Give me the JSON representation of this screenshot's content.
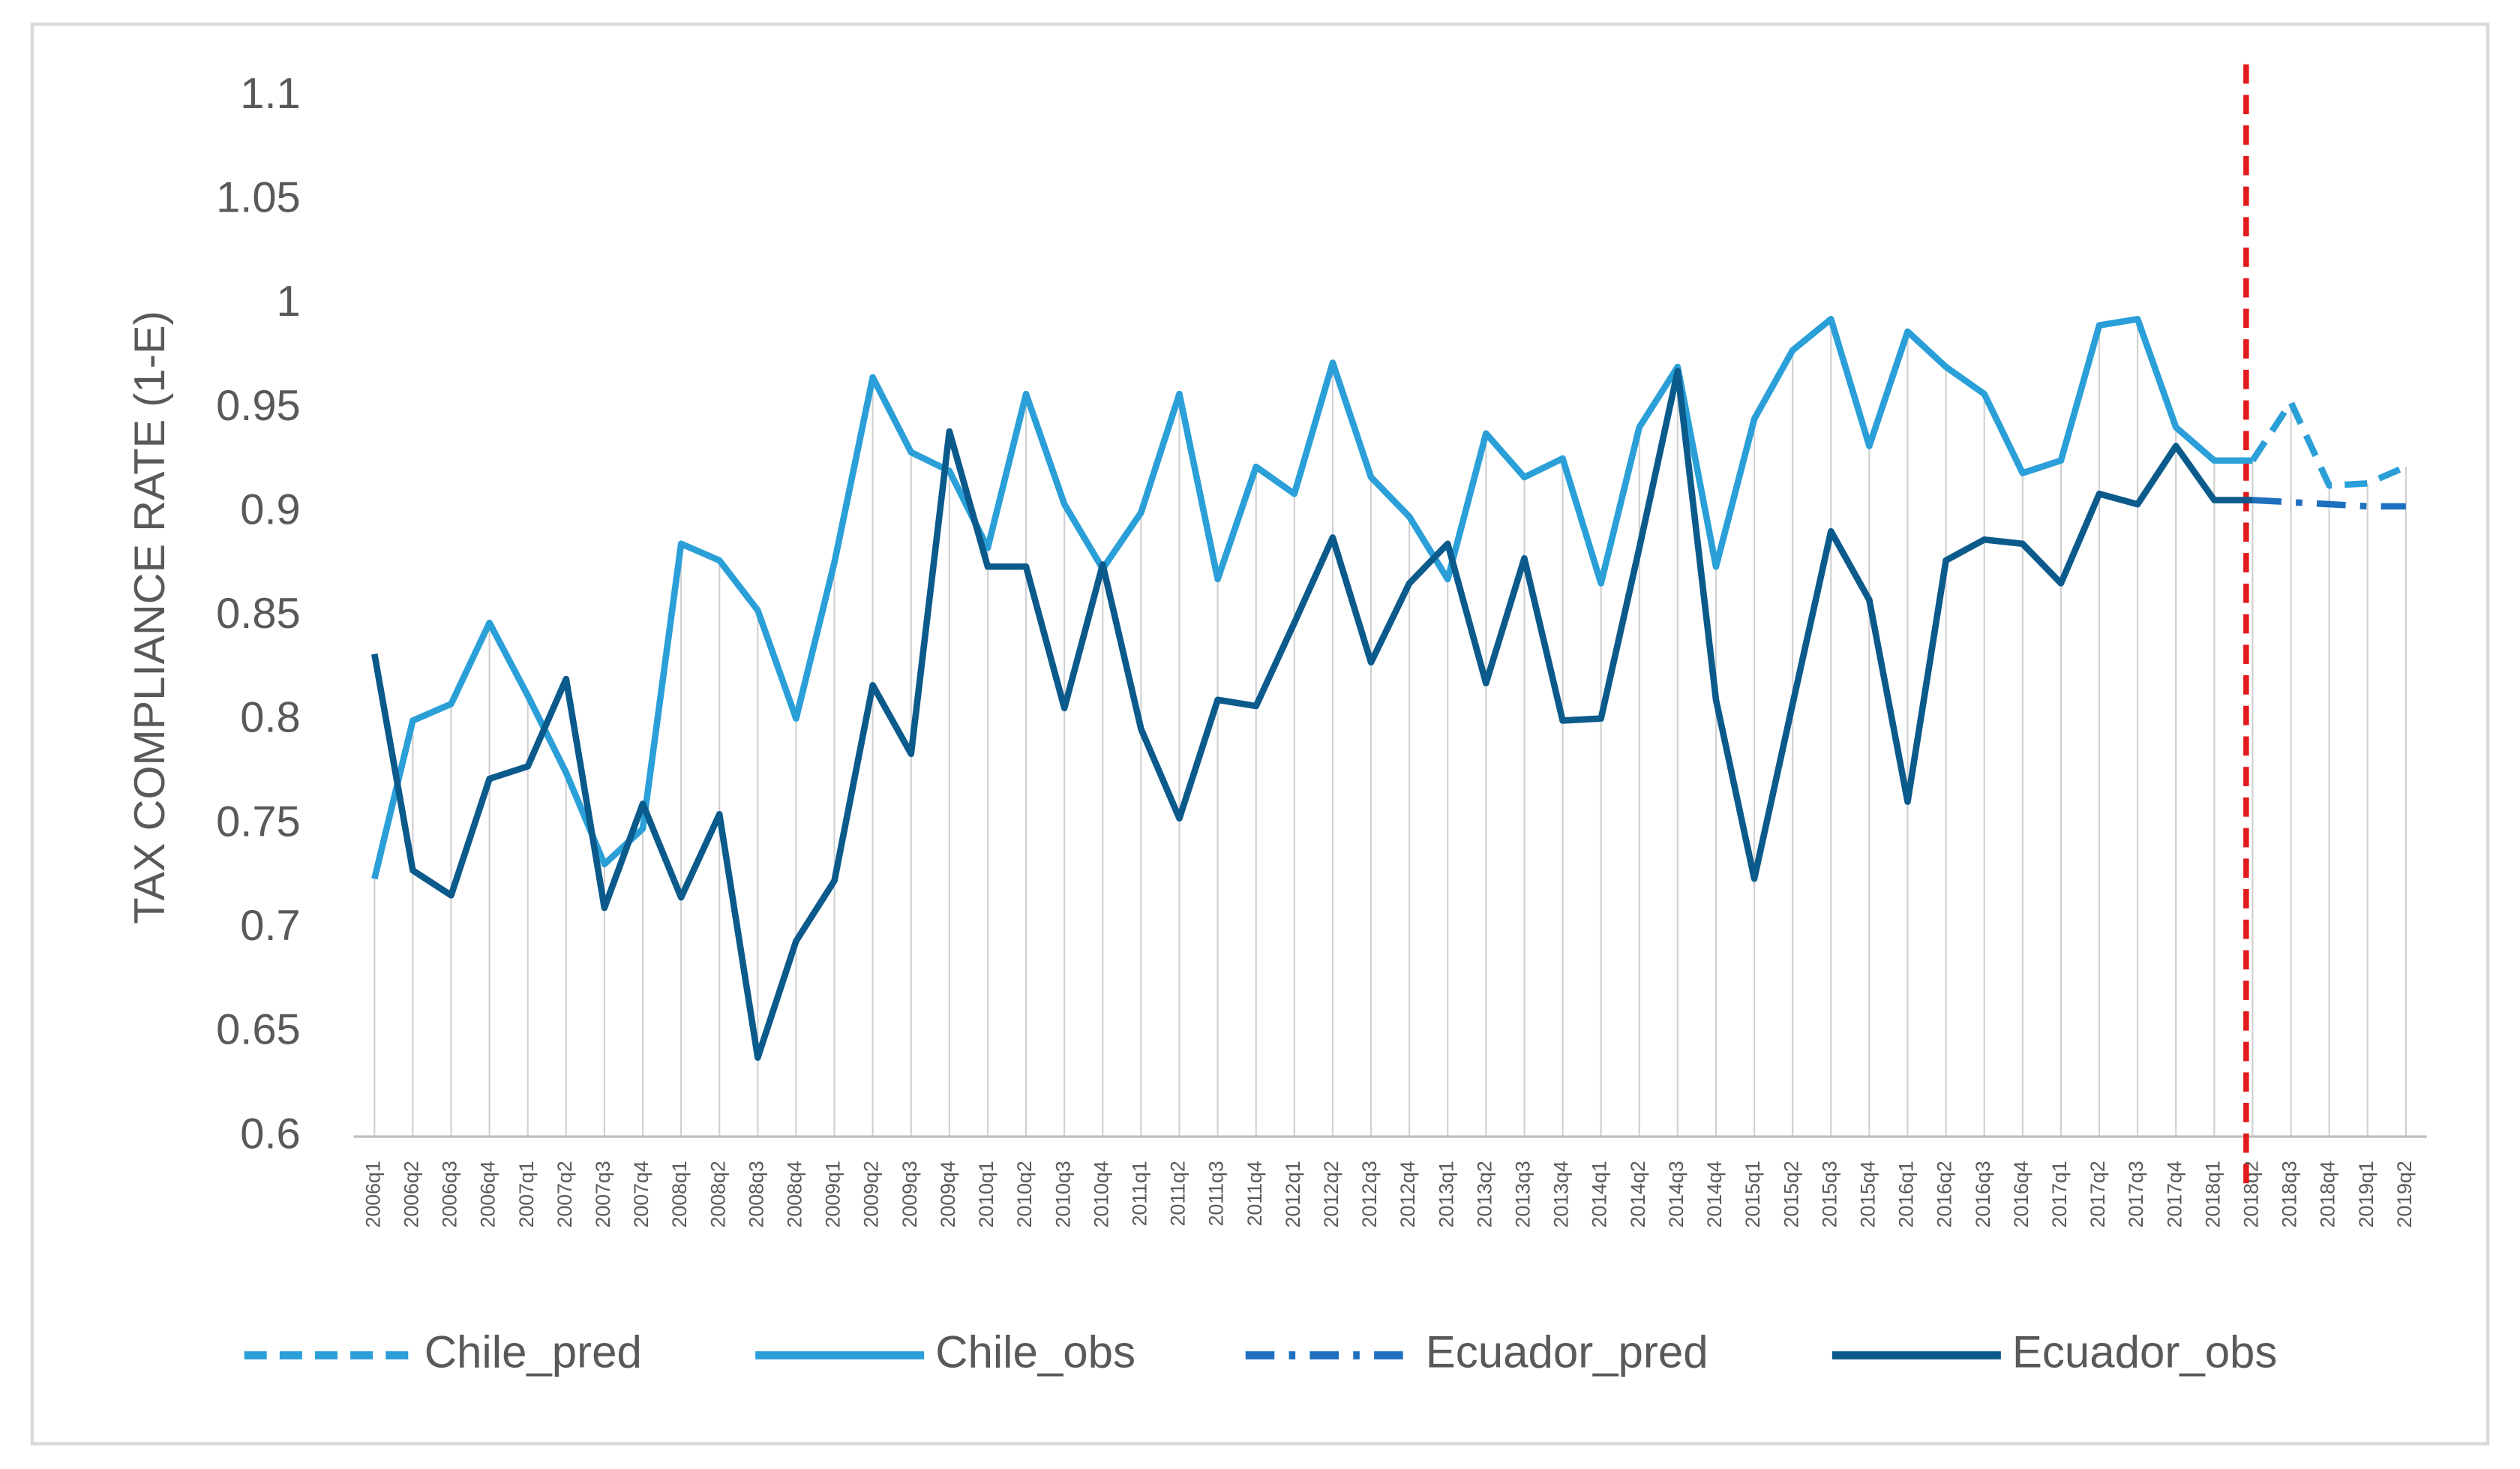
{
  "chart_data": {
    "type": "line",
    "y_label": "TAX COMPLIANCE RATE (1-E)",
    "categories": [
      "2006q1",
      "2006q2",
      "2006q3",
      "2006q4",
      "2007q1",
      "2007q2",
      "2007q3",
      "2007q4",
      "2008q1",
      "2008q2",
      "2008q3",
      "2008q4",
      "2009q1",
      "2009q2",
      "2009q3",
      "2009q4",
      "2010q1",
      "2010q2",
      "2010q3",
      "2010q4",
      "2011q1",
      "2011q2",
      "2011q3",
      "2011q4",
      "2012q1",
      "2012q2",
      "2012q3",
      "2012q4",
      "2013q1",
      "2013q2",
      "2013q3",
      "2013q4",
      "2014q1",
      "2014q2",
      "2014q3",
      "2014q4",
      "2015q1",
      "2015q2",
      "2015q3",
      "2015q4",
      "2016q1",
      "2016q2",
      "2016q3",
      "2016q4",
      "2017q1",
      "2017q2",
      "2017q3",
      "2017q4",
      "2018q1",
      "2018q2",
      "2018q3",
      "2018q4",
      "2019q1",
      "2019q2"
    ],
    "series": [
      {
        "name": "Chile_pred",
        "color": "#2a9fd8",
        "dash": "dashed",
        "values": [
          null,
          null,
          null,
          null,
          null,
          null,
          null,
          null,
          null,
          null,
          null,
          null,
          null,
          null,
          null,
          null,
          null,
          null,
          null,
          null,
          null,
          null,
          null,
          null,
          null,
          null,
          null,
          null,
          null,
          null,
          null,
          null,
          null,
          null,
          null,
          null,
          null,
          null,
          null,
          null,
          null,
          null,
          null,
          null,
          null,
          null,
          null,
          null,
          null,
          0.925,
          0.953,
          0.913,
          0.914,
          0.922
        ]
      },
      {
        "name": "Chile_obs",
        "color": "#2a9fd8",
        "dash": "solid",
        "values": [
          0.724,
          0.8,
          0.808,
          0.847,
          0.812,
          0.775,
          0.731,
          0.748,
          0.885,
          0.877,
          0.853,
          0.801,
          0.876,
          0.965,
          0.929,
          0.92,
          0.883,
          0.957,
          0.904,
          0.873,
          0.9,
          0.957,
          0.868,
          0.922,
          0.909,
          0.972,
          0.917,
          0.898,
          0.868,
          0.938,
          0.917,
          0.926,
          0.866,
          0.941,
          0.97,
          0.874,
          0.945,
          0.978,
          0.993,
          0.932,
          0.987,
          0.97,
          0.957,
          0.919,
          0.925,
          0.99,
          0.993,
          0.941,
          0.925,
          0.925,
          null,
          null,
          null,
          null
        ]
      },
      {
        "name": "Ecuador_pred",
        "color": "#1f6fbf",
        "dash": "dashdot",
        "values": [
          null,
          null,
          null,
          null,
          null,
          null,
          null,
          null,
          null,
          null,
          null,
          null,
          null,
          null,
          null,
          null,
          null,
          null,
          null,
          null,
          null,
          null,
          null,
          null,
          null,
          null,
          null,
          null,
          null,
          null,
          null,
          null,
          null,
          null,
          null,
          null,
          null,
          null,
          null,
          null,
          null,
          null,
          null,
          null,
          null,
          null,
          null,
          null,
          null,
          0.906,
          0.905,
          0.904,
          0.903,
          0.903
        ]
      },
      {
        "name": "Ecuador_obs",
        "color": "#0b5a8c",
        "dash": "solid",
        "values": [
          0.832,
          0.728,
          0.716,
          0.772,
          0.778,
          0.82,
          0.71,
          0.76,
          0.715,
          0.755,
          0.638,
          0.694,
          0.723,
          0.817,
          0.784,
          0.939,
          0.874,
          0.874,
          0.806,
          0.875,
          0.796,
          0.753,
          0.81,
          0.807,
          0.847,
          0.888,
          0.828,
          0.866,
          0.885,
          0.818,
          0.878,
          0.8,
          0.801,
          0.883,
          0.968,
          0.81,
          0.724,
          0.808,
          0.891,
          0.858,
          0.761,
          0.877,
          0.887,
          0.885,
          0.866,
          0.909,
          0.904,
          0.932,
          0.906,
          0.906,
          null,
          null,
          null,
          null
        ]
      }
    ],
    "ylim": [
      0.6,
      1.1
    ],
    "yticks": [
      0.6,
      0.65,
      0.7,
      0.75,
      0.8,
      0.85,
      0.9,
      0.95,
      1,
      1.05,
      1.1
    ],
    "vline": {
      "x": "2018q2",
      "color": "#e31a1c"
    },
    "legend": "bottom"
  }
}
